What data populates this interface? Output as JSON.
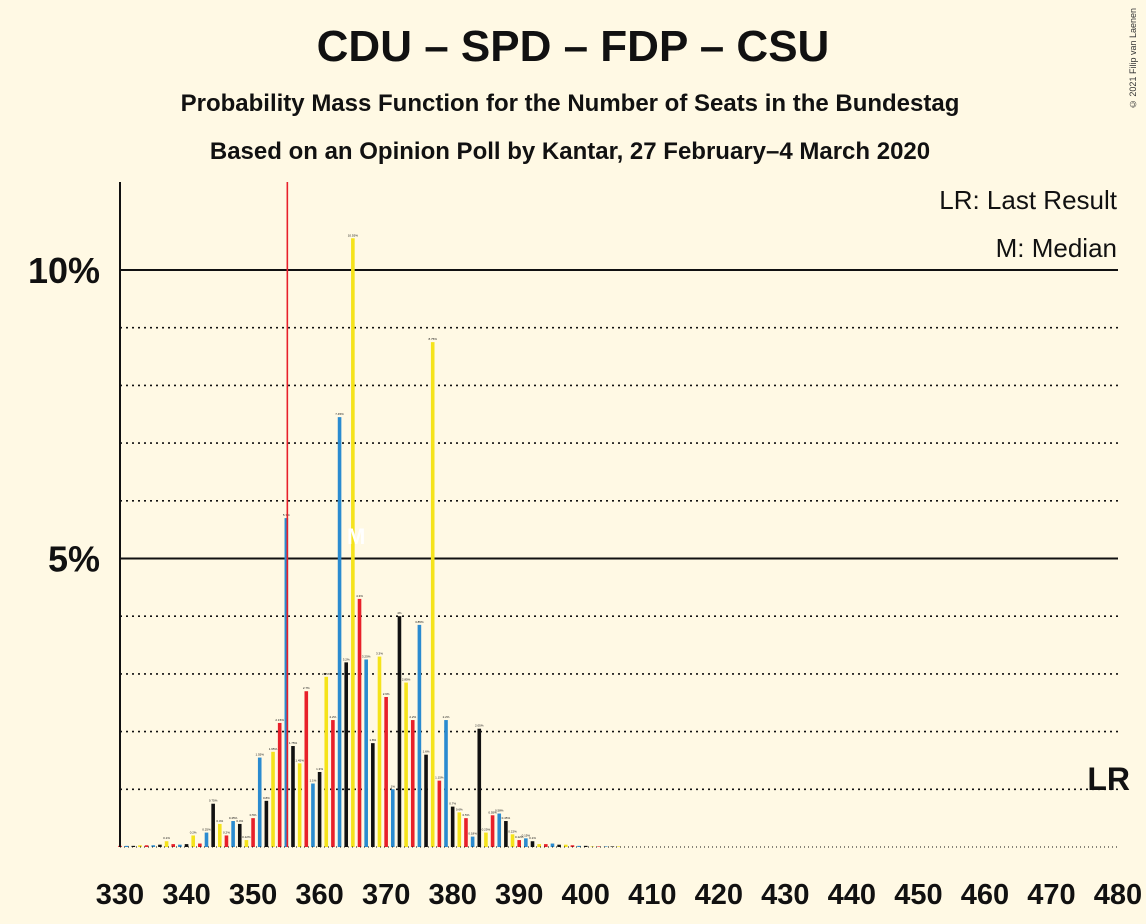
{
  "title": "CDU – SPD – FDP – CSU",
  "subtitle1": "Probability Mass Function for the Number of Seats in the Bundestag",
  "subtitle2": "Based on an Opinion Poll by Kantar, 27 February–4 March 2020",
  "copyright": "© 2021 Filip van Laenen",
  "legend": {
    "lr": "LR: Last Result",
    "median": "M: Median"
  },
  "colors": {
    "background": "#fff9e4",
    "party_cycle": [
      "#e8202a",
      "#2a8bd0",
      "#111111",
      "#f5e31a"
    ],
    "last_result_line": "#e8202a"
  },
  "chart_data": {
    "type": "bar",
    "xlabel": "",
    "ylabel": "",
    "xlim": [
      330,
      480
    ],
    "ylim": [
      0,
      11.5
    ],
    "x_ticks": [
      330,
      340,
      350,
      360,
      370,
      380,
      390,
      400,
      410,
      420,
      430,
      440,
      450,
      460,
      470,
      480
    ],
    "y_ticks": [
      {
        "value": 5,
        "label": "5%"
      },
      {
        "value": 10,
        "label": "10%"
      }
    ],
    "grid_dotted": [
      1,
      2,
      3,
      4,
      6,
      7,
      8,
      9
    ],
    "last_result": 355,
    "last_result_label": "LR",
    "median": 366,
    "median_label": "M",
    "x": [
      330,
      331,
      332,
      333,
      334,
      335,
      336,
      337,
      338,
      339,
      340,
      341,
      342,
      343,
      344,
      345,
      346,
      347,
      348,
      349,
      350,
      351,
      352,
      353,
      354,
      355,
      356,
      357,
      358,
      359,
      360,
      361,
      362,
      363,
      364,
      365,
      366,
      367,
      368,
      369,
      370,
      371,
      372,
      373,
      374,
      375,
      376,
      377,
      378,
      379,
      380,
      381,
      382,
      383,
      384,
      385,
      386,
      387,
      388,
      389,
      390,
      391,
      392,
      393,
      394,
      395,
      396,
      397,
      398,
      399,
      400,
      401,
      402,
      403,
      404,
      405
    ],
    "values": [
      0.02,
      0.02,
      0.02,
      0.03,
      0.03,
      0.03,
      0.04,
      0.1,
      0.05,
      0.04,
      0.05,
      0.2,
      0.06,
      0.25,
      0.75,
      0.4,
      0.2,
      0.45,
      0.4,
      0.12,
      0.5,
      1.55,
      0.8,
      1.65,
      2.15,
      5.7,
      1.75,
      1.45,
      2.7,
      1.1,
      1.3,
      2.95,
      2.2,
      7.45,
      3.2,
      10.55,
      4.3,
      3.25,
      1.8,
      3.3,
      2.6,
      1.0,
      4.0,
      2.85,
      2.2,
      3.85,
      1.6,
      8.75,
      1.15,
      2.2,
      0.7,
      0.6,
      0.5,
      0.18,
      2.05,
      0.25,
      0.55,
      0.58,
      0.45,
      0.22,
      0.12,
      0.15,
      0.1,
      0.05,
      0.05,
      0.06,
      0.04,
      0.04,
      0.03,
      0.02,
      0.02,
      0.01,
      0.01,
      0.01,
      0.01,
      0.01
    ]
  }
}
